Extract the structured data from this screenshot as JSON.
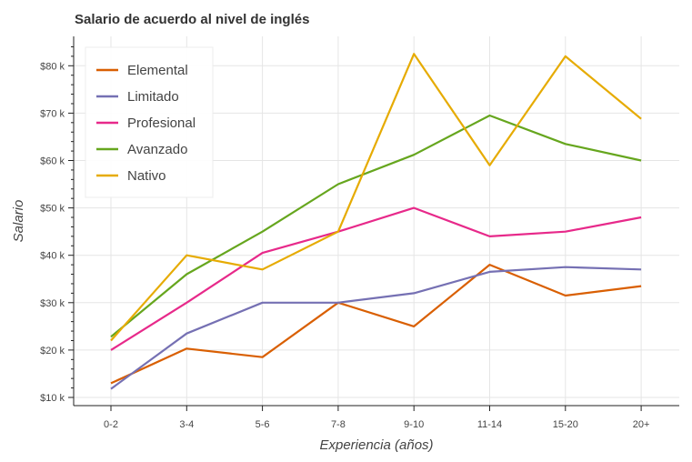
{
  "chart_data": {
    "type": "line",
    "title": "Salario de acuerdo al nivel de inglés",
    "xlabel": "Experiencia (años)",
    "ylabel": "Salario",
    "categories": [
      "0-2",
      "3-4",
      "5-6",
      "7-8",
      "9-10",
      "11-14",
      "15-20",
      "20+"
    ],
    "ylim": [
      8000,
      85000
    ],
    "yticks": [
      10000,
      20000,
      30000,
      40000,
      50000,
      60000,
      70000,
      80000
    ],
    "ytick_labels": [
      "$10 k",
      "$20 k",
      "$30 k",
      "$40 k",
      "$50 k",
      "$60 k",
      "$70 k",
      "$80 k"
    ],
    "grid": true,
    "legend_position": "top-left",
    "series": [
      {
        "name": "Elemental",
        "color": "#d95f02",
        "values": [
          13000,
          20300,
          18500,
          30000,
          25000,
          38000,
          31500,
          33500
        ]
      },
      {
        "name": "Limitado",
        "color": "#7570b3",
        "values": [
          11800,
          23500,
          30000,
          30000,
          32000,
          36500,
          37500,
          37000
        ]
      },
      {
        "name": "Profesional",
        "color": "#e7298a",
        "values": [
          20000,
          30000,
          40500,
          45000,
          50000,
          44000,
          45000,
          48000
        ]
      },
      {
        "name": "Avanzado",
        "color": "#66a61e",
        "values": [
          22800,
          36000,
          45000,
          55000,
          61200,
          69500,
          63500,
          60000
        ]
      },
      {
        "name": "Nativo",
        "color": "#e6ab02",
        "values": [
          22000,
          40000,
          37000,
          45000,
          82500,
          59000,
          82000,
          68800
        ]
      }
    ]
  }
}
